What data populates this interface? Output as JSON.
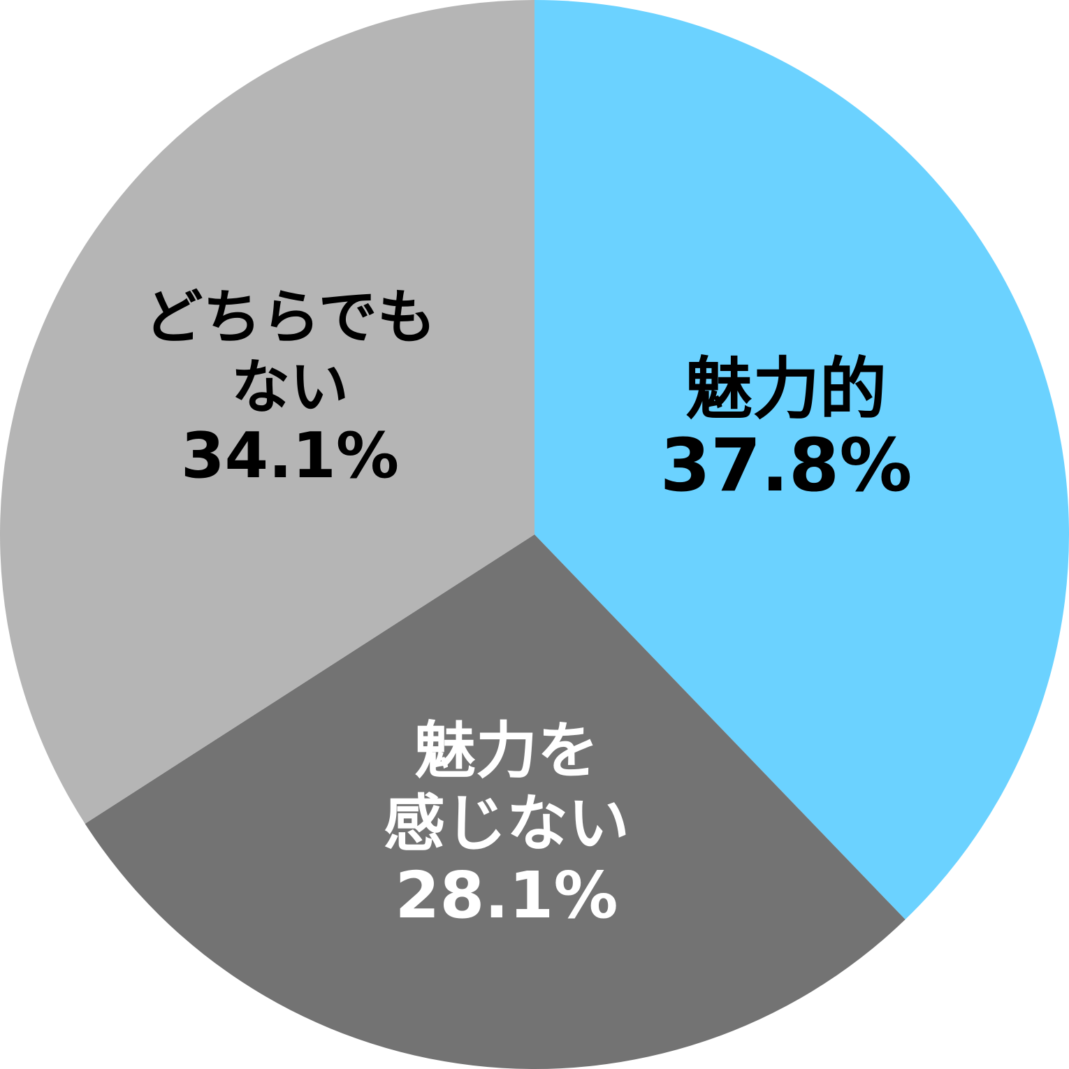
{
  "chart_data": {
    "type": "pie",
    "start": "top",
    "direction": "clockwise",
    "slices": [
      {
        "label_lines": [
          "魅力的"
        ],
        "value": 37.8,
        "value_text": "37.8%",
        "color": "#6bd2ff",
        "text_color": "#000000"
      },
      {
        "label_lines": [
          "魅力を",
          "感じない"
        ],
        "value": 28.1,
        "value_text": "28.1%",
        "color": "#737373",
        "text_color": "#ffffff"
      },
      {
        "label_lines": [
          "どちらでも",
          "ない"
        ],
        "value": 34.1,
        "value_text": "34.1%",
        "color": "#b5b5b5",
        "text_color": "#000000"
      }
    ]
  }
}
